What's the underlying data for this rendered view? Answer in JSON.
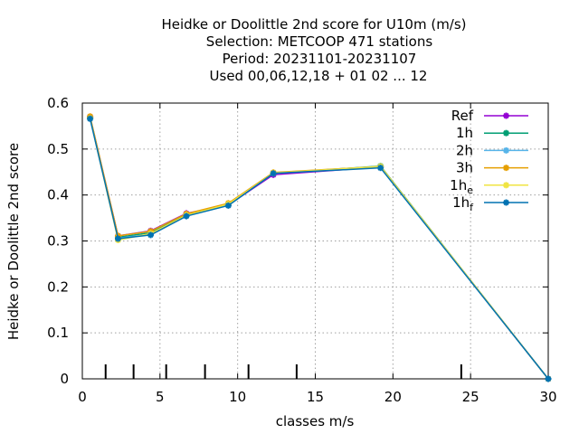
{
  "chart_data": {
    "type": "line",
    "title_lines": [
      "Heidke or Doolittle 2nd score  for U10m (m/s)",
      "Selection: METCOOP    471 stations",
      "Period: 20231101-20231107",
      "Used  00,06,12,18 + 01 02 ... 12"
    ],
    "xlabel": "classes m/s",
    "ylabel": "Heidke or Doolittle 2nd score",
    "xlim": [
      0,
      30
    ],
    "ylim": [
      0,
      0.6
    ],
    "xticks": [
      0,
      5,
      10,
      15,
      20,
      25,
      30
    ],
    "yticks": [
      0,
      0.1,
      0.2,
      0.3,
      0.4,
      0.5,
      0.6
    ],
    "xtick_labels": [
      "0",
      "5",
      "10",
      "15",
      "20",
      "25",
      "30"
    ],
    "ytick_labels": [
      "0",
      "0.1",
      "0.2",
      "0.3",
      "0.4",
      "0.5",
      "0.6"
    ],
    "class_boundaries": [
      1.5,
      3.3,
      5.4,
      7.9,
      10.7,
      13.8,
      24.4
    ],
    "grid": true,
    "legend_position": "top-right",
    "x": [
      0.5,
      2.3,
      4.4,
      6.7,
      9.4,
      12.3,
      19.2,
      30.0
    ],
    "series": [
      {
        "name": "Ref",
        "name_sub": "",
        "color": "#9400d3",
        "values": [
          0.57,
          0.311,
          0.322,
          0.36,
          0.378,
          0.444,
          0.461,
          0.0
        ]
      },
      {
        "name": "1h",
        "name_sub": "",
        "color": "#009e73",
        "values": [
          0.568,
          0.308,
          0.318,
          0.357,
          0.379,
          0.447,
          0.463,
          0.0
        ]
      },
      {
        "name": "2h",
        "name_sub": "",
        "color": "#56b4e9",
        "values": [
          0.566,
          0.306,
          0.315,
          0.355,
          0.378,
          0.447,
          0.461,
          0.0
        ]
      },
      {
        "name": "3h",
        "name_sub": "",
        "color": "#e69f00",
        "values": [
          0.571,
          0.311,
          0.321,
          0.359,
          0.382,
          0.449,
          0.462,
          0.0
        ]
      },
      {
        "name": "1h",
        "name_sub": "e",
        "color": "#f0e442",
        "values": [
          0.567,
          0.302,
          0.316,
          0.356,
          0.38,
          0.448,
          0.462,
          0.0
        ]
      },
      {
        "name": "1h",
        "name_sub": "f",
        "color": "#0072b2",
        "values": [
          0.566,
          0.305,
          0.313,
          0.354,
          0.377,
          0.447,
          0.459,
          0.0
        ]
      }
    ]
  }
}
